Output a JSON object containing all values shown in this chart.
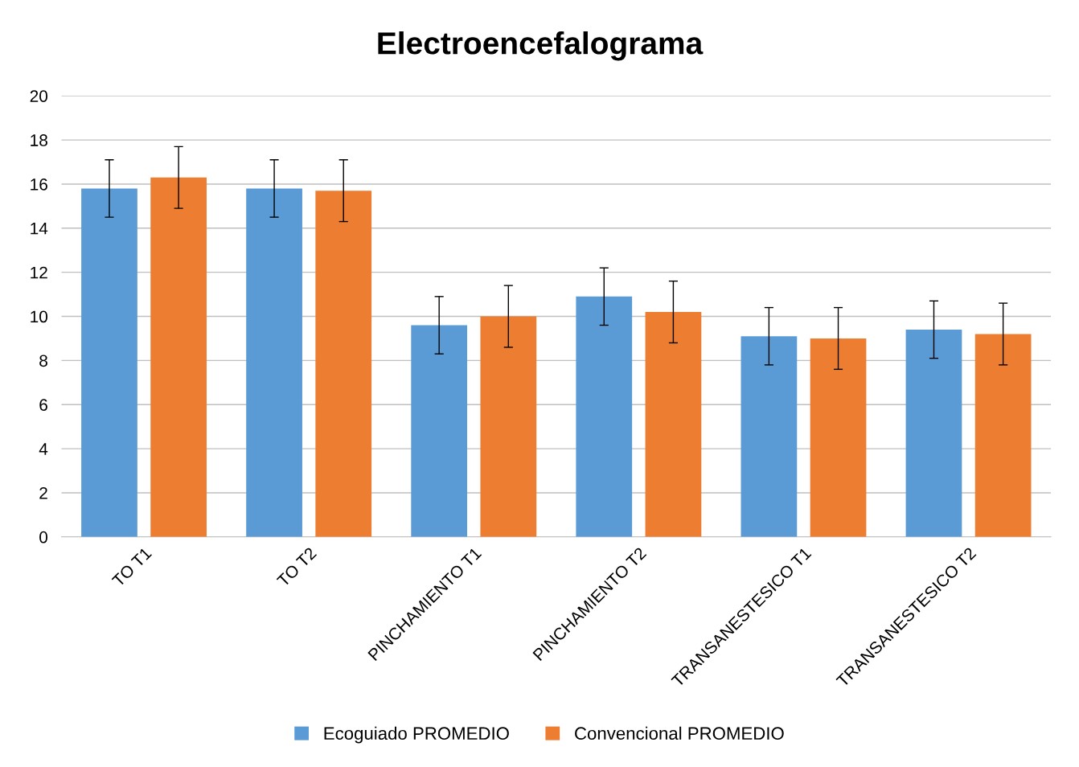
{
  "chart_data": {
    "type": "bar",
    "title": "Electroencefalograma",
    "categories": [
      "TO T1",
      "TO T2",
      "PINCHAMIENTO T1",
      "PINCHAMIENTO T2",
      "TRANSANESTESICO T1",
      "TRANSANESTESICO T2"
    ],
    "series": [
      {
        "name": "Ecoguiado PROMEDIO",
        "color": "#5b9bd5",
        "values": [
          15.8,
          15.8,
          9.6,
          10.9,
          9.1,
          9.4
        ],
        "errors": [
          1.3,
          1.3,
          1.3,
          1.3,
          1.3,
          1.3
        ]
      },
      {
        "name": "Convencional PROMEDIO",
        "color": "#ed7d31",
        "values": [
          16.3,
          15.7,
          10.0,
          10.2,
          9.0,
          9.2
        ],
        "errors": [
          1.4,
          1.4,
          1.4,
          1.4,
          1.4,
          1.4
        ]
      }
    ],
    "ylim": [
      0,
      20
    ],
    "yticks": [
      0,
      2,
      4,
      6,
      8,
      10,
      12,
      14,
      16,
      18,
      20
    ],
    "grid": "y",
    "legend": "bottom"
  }
}
